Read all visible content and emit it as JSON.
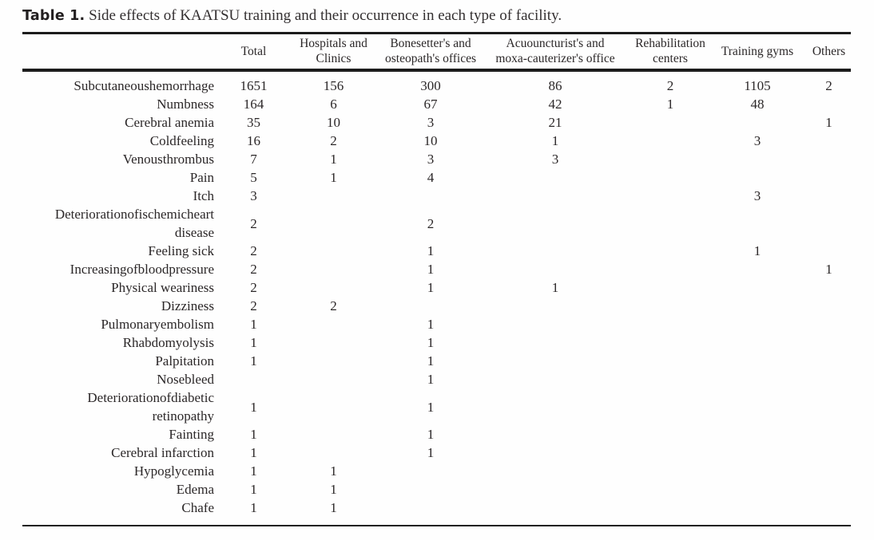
{
  "caption": {
    "label": "Table 1.",
    "text": " Side effects of KAATSU training and their occurrence in each type of facility."
  },
  "table": {
    "columns": [
      "",
      "Total",
      "Hospitals and\nClinics",
      "Bonesetter's and\nosteopath's offices",
      "Acuouncturist's and\nmoxa-cauterizer's office",
      "Rehabilitation\ncenters",
      "Training gyms",
      "Others"
    ],
    "rows": [
      {
        "label": "Subcutaneoushemorrhage",
        "values": [
          "1651",
          "156",
          "300",
          "86",
          "2",
          "1105",
          "2"
        ]
      },
      {
        "label": "Numbness",
        "values": [
          "164",
          "6",
          "67",
          "42",
          "1",
          "48",
          ""
        ]
      },
      {
        "label": "Cerebral anemia",
        "values": [
          "35",
          "10",
          "3",
          "21",
          "",
          "",
          "1"
        ]
      },
      {
        "label": "Coldfeeling",
        "values": [
          "16",
          "2",
          "10",
          "1",
          "",
          "3",
          ""
        ]
      },
      {
        "label": "Venousthrombus",
        "values": [
          "7",
          "1",
          "3",
          "3",
          "",
          "",
          ""
        ]
      },
      {
        "label": "Pain",
        "values": [
          "5",
          "1",
          "4",
          "",
          "",
          "",
          ""
        ]
      },
      {
        "label": "Itch",
        "values": [
          "3",
          "",
          "",
          "",
          "",
          "3",
          ""
        ]
      },
      {
        "label": "Deteriorationofischemicheart\ndisease",
        "values": [
          "2",
          "",
          "2",
          "",
          "",
          "",
          ""
        ]
      },
      {
        "label": "Feeling sick",
        "values": [
          "2",
          "",
          "1",
          "",
          "",
          "1",
          ""
        ]
      },
      {
        "label": "Increasingofbloodpressure",
        "values": [
          "2",
          "",
          "1",
          "",
          "",
          "",
          "1"
        ]
      },
      {
        "label": "Physical weariness",
        "values": [
          "2",
          "",
          "1",
          "1",
          "",
          "",
          ""
        ]
      },
      {
        "label": "Dizziness",
        "values": [
          "2",
          "2",
          "",
          "",
          "",
          "",
          ""
        ]
      },
      {
        "label": "Pulmonaryembolism",
        "values": [
          "1",
          "",
          "1",
          "",
          "",
          "",
          ""
        ]
      },
      {
        "label": "Rhabdomyolysis",
        "values": [
          "1",
          "",
          "1",
          "",
          "",
          "",
          ""
        ]
      },
      {
        "label": "Palpitation",
        "values": [
          "1",
          "",
          "1",
          "",
          "",
          "",
          ""
        ]
      },
      {
        "label": "Nosebleed",
        "values": [
          "",
          "",
          "1",
          "",
          "",
          "",
          ""
        ]
      },
      {
        "label": "Deteriorationofdiabetic\nretinopathy",
        "values": [
          "1",
          "",
          "1",
          "",
          "",
          "",
          ""
        ]
      },
      {
        "label": "Fainting",
        "values": [
          "1",
          "",
          "1",
          "",
          "",
          "",
          ""
        ]
      },
      {
        "label": "Cerebral infarction",
        "values": [
          "1",
          "",
          "1",
          "",
          "",
          "",
          ""
        ]
      },
      {
        "label": "Hypoglycemia",
        "values": [
          "1",
          "1",
          "",
          "",
          "",
          "",
          ""
        ]
      },
      {
        "label": "Edema",
        "values": [
          "1",
          "1",
          "",
          "",
          "",
          "",
          ""
        ]
      },
      {
        "label": "Chafe",
        "values": [
          "1",
          "1",
          "",
          "",
          "",
          "",
          ""
        ]
      }
    ]
  },
  "colors": {
    "text": "#2b2728",
    "rule": "#1c1c1c",
    "background": "#fefefe"
  }
}
